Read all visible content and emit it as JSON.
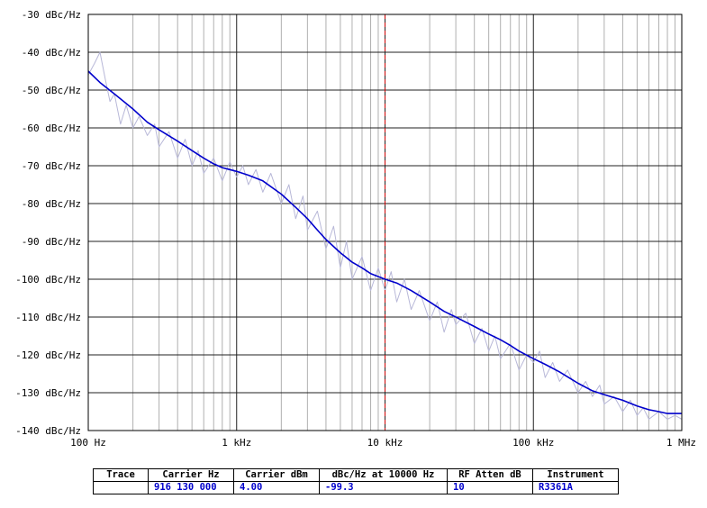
{
  "chart_data": {
    "type": "line",
    "title": "",
    "xlabel": "",
    "ylabel": "",
    "x_scale": "log",
    "xlim": [
      100,
      1000000
    ],
    "ylim": [
      -140,
      -30
    ],
    "grid": true,
    "x_ticks": [
      {
        "value": 100,
        "label": "100 Hz"
      },
      {
        "value": 1000,
        "label": "1 kHz"
      },
      {
        "value": 10000,
        "label": "10 kHz"
      },
      {
        "value": 100000,
        "label": "100 kHz"
      },
      {
        "value": 1000000,
        "label": "1 MHz"
      }
    ],
    "y_ticks": [
      {
        "value": -30,
        "label": "-30 dBc/Hz"
      },
      {
        "value": -40,
        "label": "-40 dBc/Hz"
      },
      {
        "value": -50,
        "label": "-50 dBc/Hz"
      },
      {
        "value": -60,
        "label": "-60 dBc/Hz"
      },
      {
        "value": -70,
        "label": "-70 dBc/Hz"
      },
      {
        "value": -80,
        "label": "-80 dBc/Hz"
      },
      {
        "value": -90,
        "label": "-90 dBc/Hz"
      },
      {
        "value": -100,
        "label": "-100 dBc/Hz"
      },
      {
        "value": -110,
        "label": "-110 dBc/Hz"
      },
      {
        "value": -120,
        "label": "-120 dBc/Hz"
      },
      {
        "value": -130,
        "label": "-130 dBc/Hz"
      },
      {
        "value": -140,
        "label": "-140 dBc/Hz"
      }
    ],
    "marker_x": 10000,
    "series": [
      {
        "color": "#0000cc",
        "x": [
          100,
          120,
          150,
          200,
          250,
          300,
          400,
          500,
          600,
          700,
          800,
          1000,
          1200,
          1500,
          2000,
          2500,
          3000,
          3500,
          4000,
          5000,
          6000,
          7000,
          8000,
          10000,
          12000,
          15000,
          20000,
          25000,
          30000,
          40000,
          50000,
          60000,
          70000,
          80000,
          100000,
          120000,
          150000,
          200000,
          250000,
          300000,
          400000,
          500000,
          600000,
          700000,
          800000,
          1000000
        ],
        "y": [
          -45,
          -48,
          -51,
          -55,
          -58.5,
          -60.5,
          -63.5,
          -66,
          -68,
          -69.5,
          -70.5,
          -71.5,
          -72.5,
          -74,
          -77.5,
          -81,
          -84,
          -87,
          -89.5,
          -93,
          -95.5,
          -97,
          -98.5,
          -100,
          -101,
          -103,
          -106,
          -108.5,
          -110,
          -112.5,
          -114.5,
          -116,
          -117.5,
          -119,
          -121,
          -122.5,
          -124.5,
          -127.5,
          -129.5,
          -130.5,
          -132,
          -133.5,
          -134.5,
          -135,
          -135.5,
          -135.5
        ]
      },
      {
        "color": "#b8b8d8",
        "x": [
          100,
          110,
          120,
          130,
          140,
          150,
          165,
          180,
          200,
          220,
          250,
          280,
          300,
          350,
          400,
          450,
          500,
          550,
          600,
          700,
          800,
          900,
          1000,
          1100,
          1200,
          1350,
          1500,
          1700,
          2000,
          2250,
          2500,
          2800,
          3000,
          3500,
          4000,
          4500,
          5000,
          5500,
          6000,
          7000,
          8000,
          9000,
          10000,
          11000,
          12000,
          13500,
          15000,
          17000,
          20000,
          22500,
          25000,
          28000,
          30000,
          35000,
          40000,
          45000,
          50000,
          55000,
          60000,
          70000,
          80000,
          90000,
          100000,
          110000,
          120000,
          135000,
          150000,
          170000,
          200000,
          225000,
          250000,
          280000,
          300000,
          350000,
          400000,
          450000,
          500000,
          550000,
          600000,
          700000,
          800000,
          900000,
          1000000
        ],
        "y": [
          -46,
          -43,
          -40,
          -47,
          -53,
          -51,
          -59,
          -54,
          -60,
          -57,
          -62,
          -59,
          -65,
          -61,
          -68,
          -63,
          -70,
          -66,
          -72,
          -68,
          -74,
          -69,
          -73,
          -70,
          -75,
          -71,
          -77,
          -72,
          -80,
          -75,
          -84,
          -78,
          -87,
          -82,
          -92,
          -86,
          -97,
          -90,
          -100,
          -94,
          -103,
          -97,
          -103,
          -98,
          -106,
          -100,
          -108,
          -103,
          -111,
          -106,
          -114,
          -108,
          -112,
          -109,
          -117,
          -113,
          -119,
          -115,
          -121,
          -117,
          -124,
          -120,
          -122,
          -119,
          -126,
          -122,
          -127,
          -124,
          -130,
          -127,
          -131,
          -128,
          -133,
          -131,
          -135,
          -132,
          -136,
          -134,
          -137,
          -135,
          -137,
          -136,
          -137
        ]
      }
    ]
  },
  "info_table": {
    "headers": [
      "Trace",
      "Carrier Hz",
      "Carrier dBm",
      "dBc/Hz at 10000 Hz",
      "RF Atten dB",
      "Instrument"
    ],
    "values": [
      "",
      "916 130 000",
      "4.00",
      "-99.3",
      "10",
      "R3361A"
    ]
  }
}
